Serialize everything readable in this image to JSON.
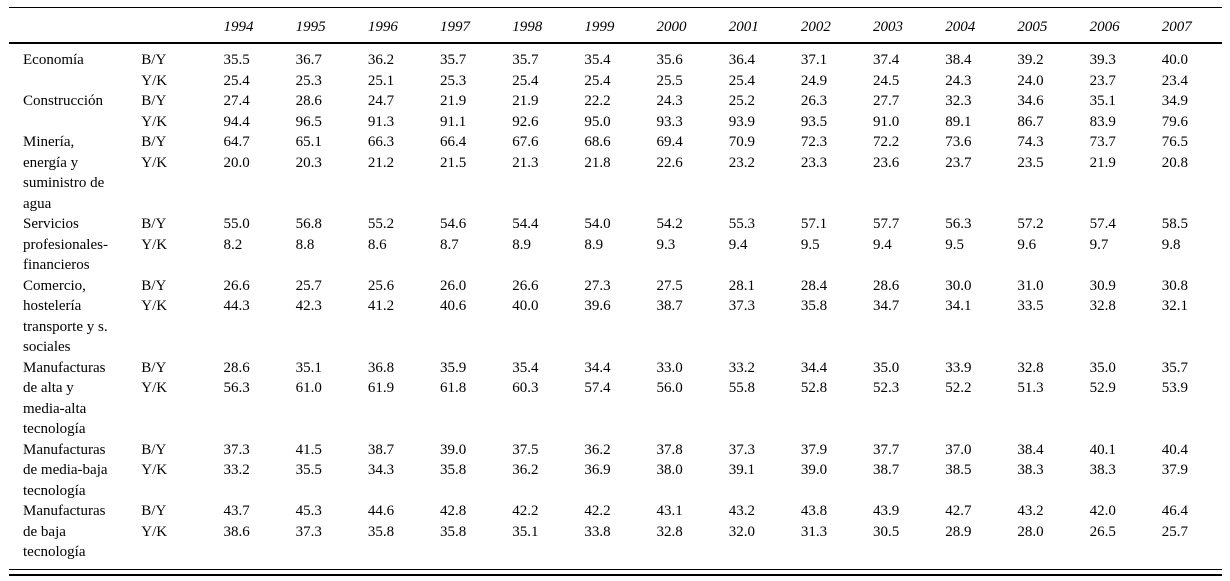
{
  "table": {
    "years": [
      "1994",
      "1995",
      "1996",
      "1997",
      "1998",
      "1999",
      "2000",
      "2001",
      "2002",
      "2003",
      "2004",
      "2005",
      "2006",
      "2007"
    ],
    "ratio_labels": [
      "B/Y",
      "Y/K"
    ],
    "rows": [
      {
        "sector_lines": [
          "Economía"
        ],
        "by": [
          "35.5",
          "36.7",
          "36.2",
          "35.7",
          "35.7",
          "35.4",
          "35.6",
          "36.4",
          "37.1",
          "37.4",
          "38.4",
          "39.2",
          "39.3",
          "40.0"
        ],
        "yk": [
          "25.4",
          "25.3",
          "25.1",
          "25.3",
          "25.4",
          "25.4",
          "25.5",
          "25.4",
          "24.9",
          "24.5",
          "24.3",
          "24.0",
          "23.7",
          "23.4"
        ]
      },
      {
        "sector_lines": [
          "Construcción"
        ],
        "by": [
          "27.4",
          "28.6",
          "24.7",
          "21.9",
          "21.9",
          "22.2",
          "24.3",
          "25.2",
          "26.3",
          "27.7",
          "32.3",
          "34.6",
          "35.1",
          "34.9"
        ],
        "yk": [
          "94.4",
          "96.5",
          "91.3",
          "91.1",
          "92.6",
          "95.0",
          "93.3",
          "93.9",
          "93.5",
          "91.0",
          "89.1",
          "86.7",
          "83.9",
          "79.6"
        ]
      },
      {
        "sector_lines": [
          "Minería,",
          "energía y",
          "suministro de",
          "agua"
        ],
        "by": [
          "64.7",
          "65.1",
          "66.3",
          "66.4",
          "67.6",
          "68.6",
          "69.4",
          "70.9",
          "72.3",
          "72.2",
          "73.6",
          "74.3",
          "73.7",
          "76.5"
        ],
        "yk": [
          "20.0",
          "20.3",
          "21.2",
          "21.5",
          "21.3",
          "21.8",
          "22.6",
          "23.2",
          "23.3",
          "23.6",
          "23.7",
          "23.5",
          "21.9",
          "20.8"
        ]
      },
      {
        "sector_lines": [
          "Servicios",
          "profesionales-",
          "financieros"
        ],
        "by": [
          "55.0",
          "56.8",
          "55.2",
          "54.6",
          "54.4",
          "54.0",
          "54.2",
          "55.3",
          "57.1",
          "57.7",
          "56.3",
          "57.2",
          "57.4",
          "58.5"
        ],
        "yk": [
          "8.2",
          "8.8",
          "8.6",
          "8.7",
          "8.9",
          "8.9",
          "9.3",
          "9.4",
          "9.5",
          "9.4",
          "9.5",
          "9.6",
          "9.7",
          "9.8"
        ]
      },
      {
        "sector_lines": [
          "Comercio,",
          "hostelería",
          "transporte y s.",
          "sociales"
        ],
        "by": [
          "26.6",
          "25.7",
          "25.6",
          "26.0",
          "26.6",
          "27.3",
          "27.5",
          "28.1",
          "28.4",
          "28.6",
          "30.0",
          "31.0",
          "30.9",
          "30.8"
        ],
        "yk": [
          "44.3",
          "42.3",
          "41.2",
          "40.6",
          "40.0",
          "39.6",
          "38.7",
          "37.3",
          "35.8",
          "34.7",
          "34.1",
          "33.5",
          "32.8",
          "32.1"
        ]
      },
      {
        "sector_lines": [
          "Manufacturas",
          "de alta y",
          "media-alta",
          "tecnología"
        ],
        "by": [
          "28.6",
          "35.1",
          "36.8",
          "35.9",
          "35.4",
          "34.4",
          "33.0",
          "33.2",
          "34.4",
          "35.0",
          "33.9",
          "32.8",
          "35.0",
          "35.7"
        ],
        "yk": [
          "56.3",
          "61.0",
          "61.9",
          "61.8",
          "60.3",
          "57.4",
          "56.0",
          "55.8",
          "52.8",
          "52.3",
          "52.2",
          "51.3",
          "52.9",
          "53.9"
        ]
      },
      {
        "sector_lines": [
          "Manufacturas",
          "de media-baja",
          "tecnología"
        ],
        "by": [
          "37.3",
          "41.5",
          "38.7",
          "39.0",
          "37.5",
          "36.2",
          "37.8",
          "37.3",
          "37.9",
          "37.7",
          "37.0",
          "38.4",
          "40.1",
          "40.4"
        ],
        "yk": [
          "33.2",
          "35.5",
          "34.3",
          "35.8",
          "36.2",
          "36.9",
          "38.0",
          "39.1",
          "39.0",
          "38.7",
          "38.5",
          "38.3",
          "38.3",
          "37.9"
        ]
      },
      {
        "sector_lines": [
          "Manufacturas",
          "de baja",
          "tecnología"
        ],
        "by": [
          "43.7",
          "45.3",
          "44.6",
          "42.8",
          "42.2",
          "42.2",
          "43.1",
          "43.2",
          "43.8",
          "43.9",
          "42.7",
          "43.2",
          "42.0",
          "46.4"
        ],
        "yk": [
          "38.6",
          "37.3",
          "35.8",
          "35.8",
          "35.1",
          "33.8",
          "32.8",
          "32.0",
          "31.3",
          "30.5",
          "28.9",
          "28.0",
          "26.5",
          "25.7"
        ]
      }
    ]
  }
}
